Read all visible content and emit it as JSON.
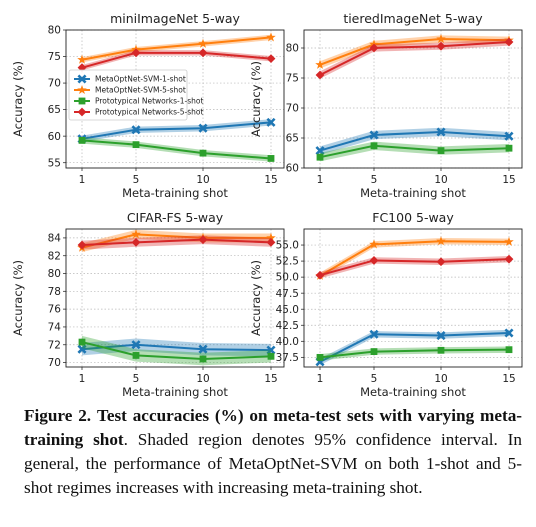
{
  "figure": {
    "caption_label": "Figure 2.",
    "caption_bold": "Test accuracies (%) on meta-test sets with varying meta-training shot",
    "caption_rest": ". Shaded region denotes 95% confidence interval. In general, the performance of MetaOptNet-SVM on both 1-shot and 5-shot regimes increases with increasing meta-training shot."
  },
  "colors": {
    "MetaOptNet-SVM-1-shot": "#1f77b4",
    "MetaOptNet-SVM-5-shot": "#ff7f0e",
    "Prototypical Networks-1-shot": "#2ca02c",
    "Prototypical Networks-5-shot": "#d62728"
  },
  "chart_data": [
    {
      "type": "line",
      "title": "miniImageNet 5-way",
      "xlabel": "Meta-training shot",
      "ylabel": "Accuracy (%)",
      "x": [
        1,
        5,
        10,
        15
      ],
      "ylim": [
        54,
        80
      ],
      "yticks": [
        55,
        60,
        65,
        70,
        75,
        80
      ],
      "legend": "center-left",
      "grid": true,
      "series": [
        {
          "name": "MetaOptNet-SVM-1-shot",
          "marker": "x",
          "values": [
            59.5,
            61.2,
            61.5,
            62.6
          ],
          "ci": 0.6
        },
        {
          "name": "MetaOptNet-SVM-5-shot",
          "marker": "star",
          "values": [
            74.4,
            76.3,
            77.4,
            78.6
          ],
          "ci": 0.5
        },
        {
          "name": "Prototypical Networks-1-shot",
          "marker": "square",
          "values": [
            59.2,
            58.4,
            56.8,
            55.8
          ],
          "ci": 0.6
        },
        {
          "name": "Prototypical Networks-5-shot",
          "marker": "diamond",
          "values": [
            72.9,
            75.7,
            75.7,
            74.6
          ],
          "ci": 0.5
        }
      ]
    },
    {
      "type": "line",
      "title": "tieredImageNet 5-way",
      "xlabel": "Meta-training shot",
      "ylabel": "Accuracy (%)",
      "x": [
        1,
        5,
        10,
        15
      ],
      "ylim": [
        60,
        83
      ],
      "yticks": [
        60,
        65,
        70,
        75,
        80
      ],
      "legend": "",
      "grid": true,
      "series": [
        {
          "name": "MetaOptNet-SVM-1-shot",
          "marker": "x",
          "values": [
            62.9,
            65.5,
            66.0,
            65.3
          ],
          "ci": 0.7
        },
        {
          "name": "MetaOptNet-SVM-5-shot",
          "marker": "star",
          "values": [
            77.2,
            80.6,
            81.5,
            81.3
          ],
          "ci": 0.6
        },
        {
          "name": "Prototypical Networks-1-shot",
          "marker": "square",
          "values": [
            61.8,
            63.7,
            62.9,
            63.3
          ],
          "ci": 0.7
        },
        {
          "name": "Prototypical Networks-5-shot",
          "marker": "diamond",
          "values": [
            75.5,
            80.0,
            80.3,
            81.0
          ],
          "ci": 0.6
        }
      ]
    },
    {
      "type": "line",
      "title": "CIFAR-FS 5-way",
      "xlabel": "Meta-training shot",
      "ylabel": "Accuracy (%)",
      "x": [
        1,
        5,
        10,
        15
      ],
      "ylim": [
        69.5,
        85
      ],
      "yticks": [
        70,
        72,
        74,
        76,
        78,
        80,
        82,
        84
      ],
      "legend": "",
      "grid": true,
      "series": [
        {
          "name": "MetaOptNet-SVM-1-shot",
          "marker": "x",
          "values": [
            71.5,
            72.0,
            71.5,
            71.4
          ],
          "ci": 0.7
        },
        {
          "name": "MetaOptNet-SVM-5-shot",
          "marker": "star",
          "values": [
            82.9,
            84.4,
            84.0,
            84.0
          ],
          "ci": 0.5
        },
        {
          "name": "Prototypical Networks-1-shot",
          "marker": "square",
          "values": [
            72.3,
            70.8,
            70.4,
            70.7
          ],
          "ci": 0.7
        },
        {
          "name": "Prototypical Networks-5-shot",
          "marker": "diamond",
          "values": [
            83.2,
            83.5,
            83.8,
            83.5
          ],
          "ci": 0.5
        }
      ]
    },
    {
      "type": "line",
      "title": "FC100 5-way",
      "xlabel": "Meta-training shot",
      "ylabel": "Accuracy (%)",
      "x": [
        1,
        5,
        10,
        15
      ],
      "ylim": [
        36,
        57.5
      ],
      "yticks": [
        37.5,
        40.0,
        42.5,
        45.0,
        47.5,
        50.0,
        52.5,
        55.0
      ],
      "legend": "",
      "grid": true,
      "series": [
        {
          "name": "MetaOptNet-SVM-1-shot",
          "marker": "x",
          "values": [
            36.8,
            41.1,
            40.9,
            41.3
          ],
          "ci": 0.5
        },
        {
          "name": "MetaOptNet-SVM-5-shot",
          "marker": "star",
          "values": [
            50.2,
            55.1,
            55.6,
            55.5
          ],
          "ci": 0.5
        },
        {
          "name": "Prototypical Networks-1-shot",
          "marker": "square",
          "values": [
            37.5,
            38.4,
            38.6,
            38.7
          ],
          "ci": 0.5
        },
        {
          "name": "Prototypical Networks-5-shot",
          "marker": "diamond",
          "values": [
            50.3,
            52.6,
            52.4,
            52.8
          ],
          "ci": 0.5
        }
      ]
    }
  ]
}
